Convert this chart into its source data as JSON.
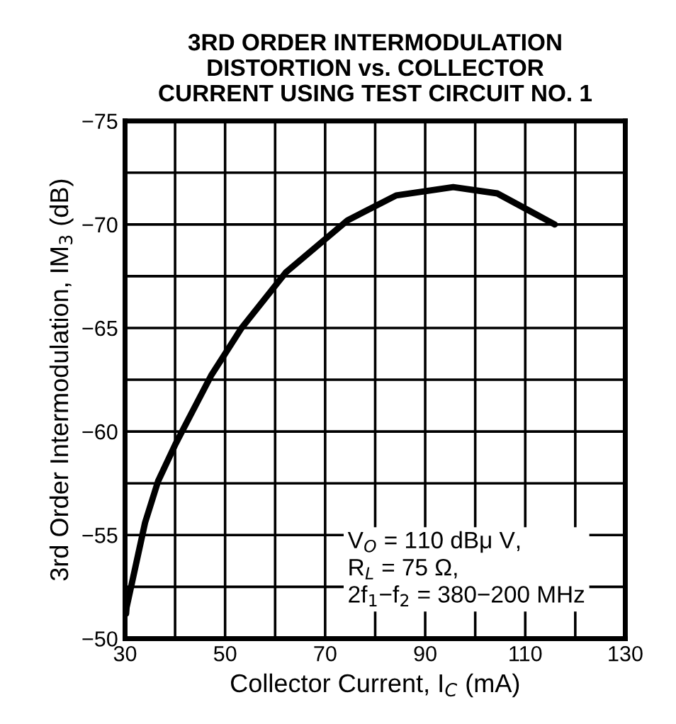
{
  "chart_data": {
    "type": "line",
    "title": "3RD ORDER INTERMODULATION\nDISTORTION vs. COLLECTOR\nCURRENT USING TEST CIRCUIT NO. 1",
    "xlabel": "Collector Current, I$_{C}$ (mA)",
    "ylabel": "3rd Order Intermodulation, IM$_{3}$ (dB)",
    "series": [
      {
        "color": "#000000",
        "x": [
          30.2,
          30.3,
          34,
          36.6,
          40.1,
          47.2,
          53.3,
          62.2,
          74.5,
          84.2,
          95.6,
          104.4,
          115.9
        ],
        "values": [
          -51.2,
          -51.5,
          -55.6,
          -57.6,
          -59.4,
          -62.7,
          -65.0,
          -67.7,
          -70.2,
          -71.4,
          -71.8,
          -71.5,
          -70.0
        ]
      }
    ],
    "xlim": [
      30,
      130
    ],
    "xticks": [
      30,
      {
        "value": 40,
        "label": null
      },
      50,
      {
        "value": 60,
        "label": null
      },
      70,
      {
        "value": 80,
        "label": null
      },
      90,
      {
        "value": 100,
        "label": null
      },
      110,
      {
        "value": 120,
        "label": null
      },
      130
    ],
    "ylim": [
      -50,
      -75
    ],
    "yticks": [
      -50,
      {
        "value": -52.5,
        "label": null
      },
      -55,
      {
        "value": -57.5,
        "label": null
      },
      -60,
      {
        "value": -62.5,
        "label": null
      },
      -65,
      {
        "value": -67.5,
        "label": null
      },
      -70,
      {
        "value": -72.5,
        "label": null
      },
      -75
    ],
    "grid": true,
    "legend": false,
    "marker": "none",
    "line_style": "solid",
    "annotations": [
      "V$_{O}$ = 110 dBμ V,\nR$_{L}$ = 75 Ω,\n2f$_{1}$−f$_{2}$ = 380−200 MHz"
    ]
  }
}
